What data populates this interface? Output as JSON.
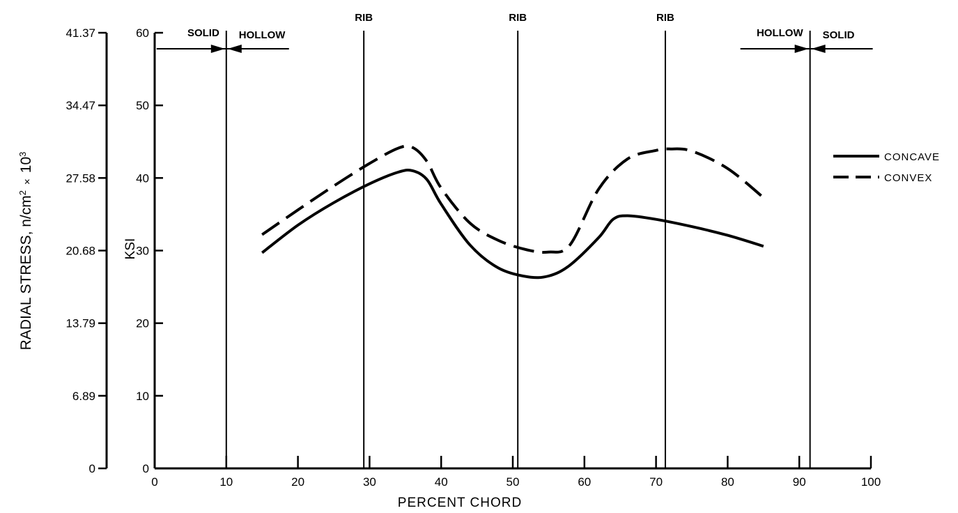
{
  "chart_data": {
    "type": "line",
    "xlabel": "PERCENT CHORD",
    "ylabel": "KSI",
    "y2label_main": "RADIAL STRESS, n/cm",
    "y2label_exp2": "2",
    "y2label_times": "×",
    "y2label_base": "10",
    "y2label_exp3": "3",
    "xlim": [
      0,
      100
    ],
    "ylim": [
      0,
      60
    ],
    "x_ticks": [
      "0",
      "10",
      "20",
      "30",
      "40",
      "50",
      "60",
      "70",
      "80",
      "90",
      "100"
    ],
    "y_ticks": [
      "0",
      "10",
      "20",
      "30",
      "40",
      "50",
      "60"
    ],
    "y2_ticks": [
      "0",
      "6.89",
      "13.79",
      "20.68",
      "27.58",
      "34.47",
      "41.37"
    ],
    "grid": false,
    "legend_position": "right",
    "series": [
      {
        "name": "CONCAVE",
        "style": "solid",
        "x": [
          15,
          20,
          25,
          30,
          34,
          36,
          38,
          40,
          44,
          48,
          52,
          55,
          58,
          62,
          64,
          66,
          70,
          75,
          80,
          85
        ],
        "y": [
          29.7,
          33.5,
          36.6,
          39.2,
          40.8,
          41.0,
          39.8,
          36.4,
          30.8,
          27.6,
          26.4,
          26.5,
          28.0,
          31.8,
          34.3,
          34.8,
          34.3,
          33.3,
          32.1,
          30.6
        ]
      },
      {
        "name": "CONVEX",
        "style": "dashed",
        "x": [
          15,
          20,
          25,
          30,
          34,
          36,
          38,
          40,
          44,
          48,
          52,
          55,
          58,
          62,
          66,
          70,
          72,
          75,
          80,
          85
        ],
        "y": [
          32.2,
          35.6,
          38.9,
          42.0,
          44.1,
          44.2,
          42.3,
          38.6,
          33.8,
          31.4,
          30.1,
          29.8,
          30.8,
          38.5,
          42.6,
          43.8,
          44.0,
          43.7,
          41.3,
          37.3
        ]
      }
    ],
    "ribs": [
      {
        "label": "RIB",
        "x": 29.2
      },
      {
        "label": "RIB",
        "x": 50.7
      },
      {
        "label": "RIB",
        "x": 71.3
      }
    ],
    "zones": {
      "left_solid": "SOLID",
      "left_hollow": "HOLLOW",
      "right_hollow": "HOLLOW",
      "right_solid": "SOLID",
      "left_boundary_x": 10,
      "right_boundary_x": 91.5
    }
  }
}
